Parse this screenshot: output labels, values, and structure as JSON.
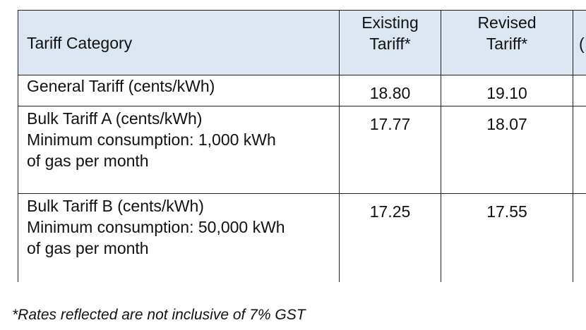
{
  "table": {
    "headers": {
      "category": "Tariff Category",
      "existing": [
        "Existing",
        "Tariff*"
      ],
      "revised": [
        "Revised",
        "Tariff*"
      ],
      "cut_off": "("
    },
    "rows": [
      {
        "category_lines": [
          "General Tariff (cents/kWh)"
        ],
        "existing": "18.80",
        "revised": "19.10"
      },
      {
        "category_lines": [
          "Bulk Tariff A (cents/kWh)",
          "Minimum consumption: 1,000 kWh",
          "of gas per month"
        ],
        "existing": "17.77",
        "revised": "18.07"
      },
      {
        "category_lines": [
          "Bulk Tariff B (cents/kWh)",
          "Minimum consumption: 50,000 kWh",
          "of gas per month"
        ],
        "existing": "17.25",
        "revised": "17.55"
      }
    ]
  },
  "footnote": "*Rates reflected are not inclusive of 7% GST"
}
